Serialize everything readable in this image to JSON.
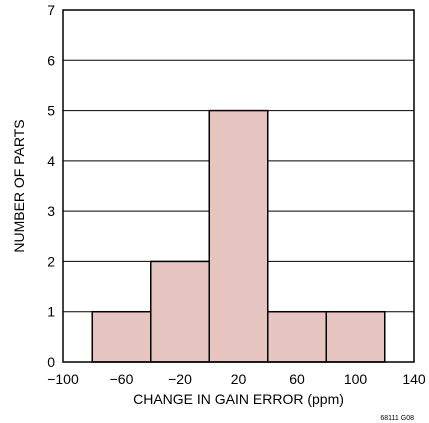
{
  "chart_data": {
    "type": "bar",
    "title": "",
    "xlabel": "CHANGE IN GAIN ERROR (ppm)",
    "ylabel": "NUMBER OF PARTS",
    "xlim": [
      -100,
      140
    ],
    "ylim": [
      0,
      7
    ],
    "x_ticks": [
      "−100",
      "−60",
      "−20",
      "20",
      "60",
      "100",
      "140"
    ],
    "y_ticks": [
      "0",
      "1",
      "2",
      "3",
      "4",
      "5",
      "6",
      "7"
    ],
    "bins": [
      {
        "from": -80,
        "to": -40,
        "count": 1
      },
      {
        "from": -40,
        "to": 0,
        "count": 2
      },
      {
        "from": 0,
        "to": 40,
        "count": 5
      },
      {
        "from": 40,
        "to": 80,
        "count": 1
      },
      {
        "from": 80,
        "to": 120,
        "count": 1
      }
    ],
    "grid": "horizontal",
    "bar_color": "#e6c4bf",
    "footnote": "68111 G08"
  }
}
